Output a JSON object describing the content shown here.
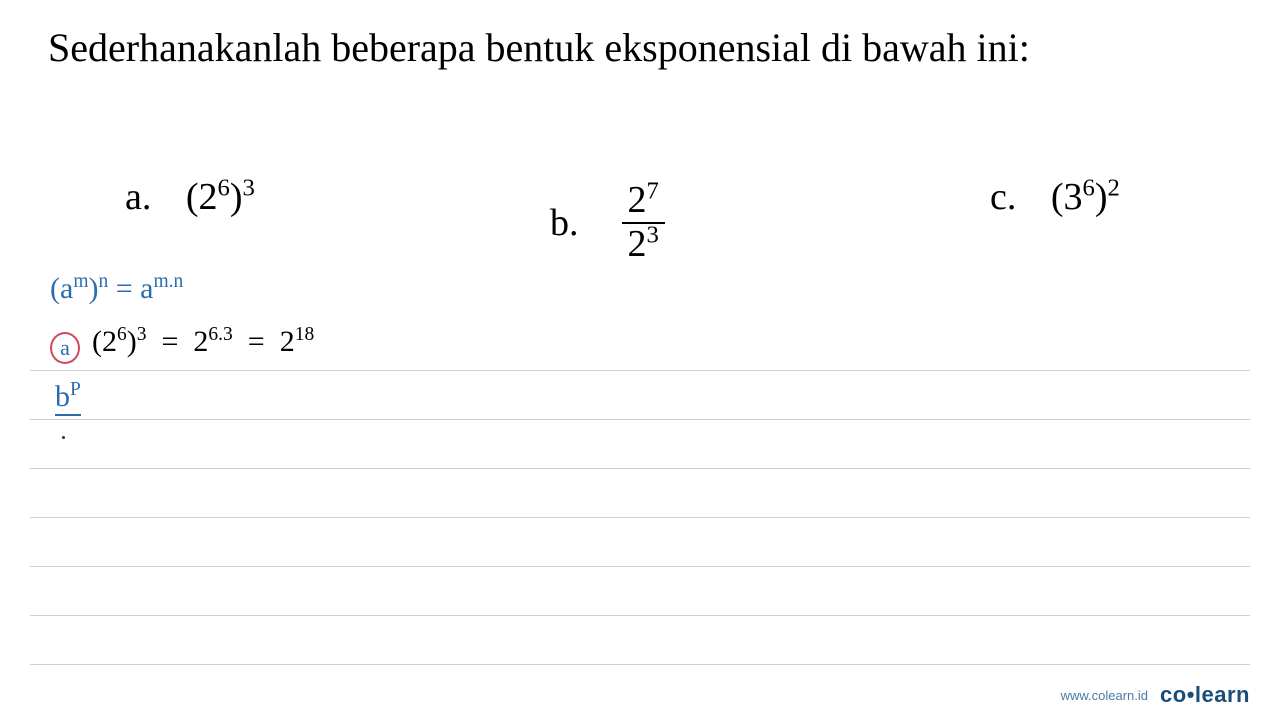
{
  "title": "Sederhanakanlah beberapa bentuk eksponensial di bawah ini:",
  "problems": {
    "a": {
      "label": "a.",
      "base": "2",
      "exp1": "6",
      "exp2": "3"
    },
    "b": {
      "label": "b.",
      "num_base": "2",
      "num_exp": "7",
      "den_base": "2",
      "den_exp": "3"
    },
    "c": {
      "label": "c.",
      "base": "3",
      "exp1": "6",
      "exp2": "2"
    }
  },
  "handwriting": {
    "formula_lhs_base": "a",
    "formula_lhs_exp1": "m",
    "formula_lhs_exp2": "n",
    "formula_rhs_base": "a",
    "formula_rhs_exp": "m.n",
    "circle_label": "a",
    "work_a_p1_base": "2",
    "work_a_p1_exp1": "6",
    "work_a_p1_exp2": "3",
    "work_a_p2_base": "2",
    "work_a_p2_exp": "6.3",
    "work_a_p3_base": "2",
    "work_a_p3_exp": "18",
    "b_base": "b",
    "b_exp": "P"
  },
  "footer": {
    "url": "www.colearn.id",
    "logo_part1": "co",
    "logo_dot": "•",
    "logo_part2": "learn"
  },
  "colors": {
    "text": "#000000",
    "blue_hand": "#2b6cb0",
    "red_circle": "#d14a5f",
    "rule_line": "#d0d0d0",
    "footer_url": "#4a7ba6",
    "footer_logo": "#1a4d7a",
    "background": "#ffffff"
  }
}
